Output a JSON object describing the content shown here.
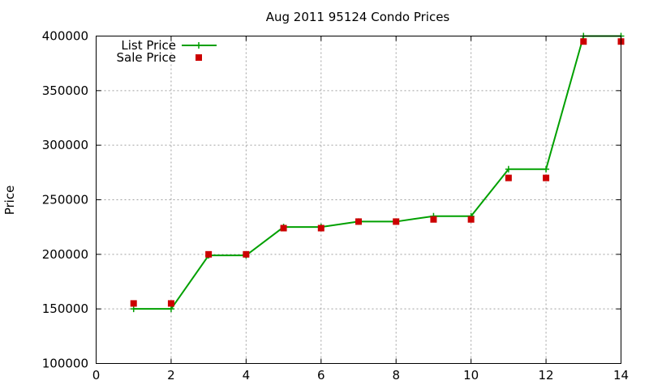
{
  "chart_data": {
    "type": "line",
    "title": "Aug 2011 95124 Condo Prices",
    "xlabel": "",
    "ylabel": "Price",
    "xlim": [
      0,
      14
    ],
    "ylim": [
      100000,
      400000
    ],
    "xticks": [
      0,
      2,
      4,
      6,
      8,
      10,
      12,
      14
    ],
    "yticks": [
      100000,
      150000,
      200000,
      250000,
      300000,
      350000,
      400000
    ],
    "grid": true,
    "legend_position": "top-left",
    "series": [
      {
        "name": "List Price",
        "style": "line-with-plus-markers",
        "color": "#00a000",
        "x": [
          1,
          2,
          3,
          4,
          5,
          6,
          7,
          8,
          9,
          10,
          11,
          12,
          13,
          14
        ],
        "y": [
          150000,
          150000,
          199000,
          199000,
          225000,
          225000,
          230000,
          230000,
          235000,
          235000,
          278000,
          278000,
          400000,
          400000
        ]
      },
      {
        "name": "Sale Price",
        "style": "square-markers",
        "color": "#cc0000",
        "x": [
          1,
          2,
          3,
          4,
          5,
          6,
          7,
          8,
          9,
          10,
          11,
          12,
          13,
          14
        ],
        "y": [
          155000,
          155000,
          200000,
          200000,
          224000,
          224000,
          230000,
          230000,
          232000,
          232000,
          270000,
          270000,
          395000,
          395000
        ]
      }
    ]
  }
}
